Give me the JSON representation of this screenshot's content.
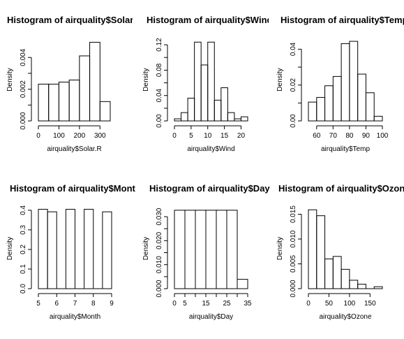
{
  "chart_data": [
    {
      "type": "bar",
      "title": "Histogram of airquality$Solar.R",
      "xlabel": "airquality$Solar.R",
      "ylabel": "Density",
      "breaks": [
        0,
        50,
        100,
        150,
        200,
        250,
        300,
        350
      ],
      "values": [
        0.00232,
        0.00232,
        0.00245,
        0.00258,
        0.0041,
        0.00496,
        0.00122
      ],
      "xlim": [
        0,
        350
      ],
      "ylim": [
        0,
        0.0052
      ],
      "xticks": [
        "0",
        "100",
        "200",
        "300"
      ],
      "yticks": [
        "0.000",
        "0.002",
        "0.004"
      ]
    },
    {
      "type": "bar",
      "title": "Histogram of airquality$Wind",
      "xlabel": "airquality$Wind",
      "ylabel": "Density",
      "breaks": [
        0,
        2,
        4,
        6,
        8,
        10,
        12,
        14,
        16,
        18,
        20,
        22
      ],
      "values": [
        0.0033,
        0.0131,
        0.0359,
        0.1242,
        0.0882,
        0.1242,
        0.0327,
        0.0523,
        0.0131,
        0.0033,
        0.0065
      ],
      "xlim": [
        0,
        22
      ],
      "ylim": [
        0,
        0.13
      ],
      "xticks": [
        "0",
        "5",
        "10",
        "15",
        "20"
      ],
      "yticks": [
        "0.00",
        "0.04",
        "0.08",
        "0.12"
      ]
    },
    {
      "type": "bar",
      "title": "Histogram of airquality$Temp",
      "xlabel": "airquality$Temp",
      "ylabel": "Density",
      "breaks": [
        55,
        60,
        65,
        70,
        75,
        80,
        85,
        90,
        95,
        100
      ],
      "values": [
        0.0105,
        0.0131,
        0.0196,
        0.0248,
        0.0431,
        0.0444,
        0.0261,
        0.0157,
        0.0026
      ],
      "xlim": [
        55,
        100
      ],
      "ylim": [
        0,
        0.046
      ],
      "xticks": [
        "60",
        "70",
        "80",
        "90",
        "100"
      ],
      "yticks": [
        "0.00",
        "0.02",
        "0.04"
      ]
    },
    {
      "type": "bar",
      "title": "Histogram of airquality$Month",
      "xlabel": "airquality$Month",
      "ylabel": "Density",
      "breaks": [
        5,
        5.5,
        6,
        6.5,
        7,
        7.5,
        8,
        8.5,
        9
      ],
      "values": [
        0.405,
        0.392,
        0,
        0.405,
        0,
        0.405,
        0,
        0.392
      ],
      "xlim": [
        5,
        9
      ],
      "ylim": [
        0,
        0.41
      ],
      "xticks": [
        "5",
        "6",
        "7",
        "8",
        "9"
      ],
      "yticks": [
        "0.0",
        "0.1",
        "0.2",
        "0.3",
        "0.4"
      ]
    },
    {
      "type": "bar",
      "title": "Histogram of airquality$Day",
      "xlabel": "airquality$Day",
      "ylabel": "Density",
      "breaks": [
        0,
        5,
        10,
        15,
        20,
        25,
        30,
        35
      ],
      "values": [
        0.0327,
        0.0327,
        0.0327,
        0.0327,
        0.0327,
        0.0327,
        0.0039
      ],
      "xlim": [
        0,
        35
      ],
      "ylim": [
        0,
        0.0335
      ],
      "xticks": [
        "0",
        "5",
        "15",
        "25",
        "35"
      ],
      "yticks": [
        "0.000",
        "0.010",
        "0.020",
        "0.030"
      ]
    },
    {
      "type": "bar",
      "title": "Histogram of airquality$Ozone",
      "xlabel": "airquality$Ozone",
      "ylabel": "Density",
      "breaks": [
        0,
        20,
        40,
        60,
        80,
        100,
        120,
        140,
        160,
        180
      ],
      "values": [
        0.0159,
        0.0147,
        0.006,
        0.0065,
        0.0039,
        0.0017,
        0.0009,
        0,
        0.0004
      ],
      "xlim": [
        0,
        180
      ],
      "ylim": [
        0,
        0.0162
      ],
      "xticks": [
        "0",
        "50",
        "100",
        "150"
      ],
      "yticks": [
        "0.000",
        "0.005",
        "0.010",
        "0.015"
      ]
    }
  ]
}
